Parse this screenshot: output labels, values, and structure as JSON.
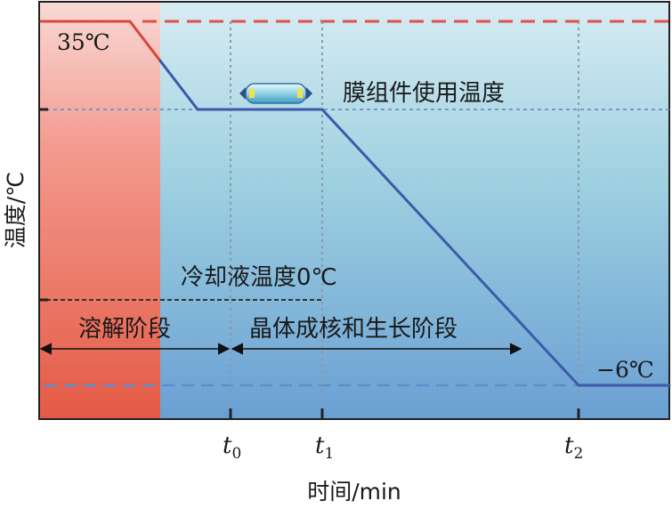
{
  "chart_data": {
    "type": "line",
    "xlabel": "时间/min",
    "ylabel": "温度/℃",
    "x_ticks": [
      {
        "key": "t0",
        "base": "t",
        "sub": "0"
      },
      {
        "key": "t1",
        "base": "t",
        "sub": "1"
      },
      {
        "key": "t2",
        "base": "t",
        "sub": "2"
      }
    ],
    "series": [
      {
        "points": [
          {
            "x": "start",
            "y": 35
          },
          {
            "x": "cool_start",
            "y": 35
          },
          {
            "x": "cool_end",
            "y": "membrane_temp"
          },
          {
            "x": "t1",
            "y": "membrane_temp"
          },
          {
            "x": "t2",
            "y": -6
          },
          {
            "x": "end",
            "y": -6
          }
        ]
      }
    ],
    "annotations": {
      "start_temp": "35℃",
      "end_temp": "−6℃",
      "membrane_temp": "膜组件使用温度",
      "coolant_temp": "冷却液温度0℃"
    },
    "phases": [
      {
        "label": "溶解阶段",
        "from": "start",
        "to": "t0"
      },
      {
        "label": "晶体成核和生长阶段",
        "from": "t0",
        "to": "t2"
      }
    ],
    "colors": {
      "line_hot": "#d6473c",
      "line_cold": "#3d5aa8",
      "hot_zone": "#e8604c",
      "dash_top": "#e0504a",
      "dash_bottom": "#5a8fd0"
    }
  }
}
